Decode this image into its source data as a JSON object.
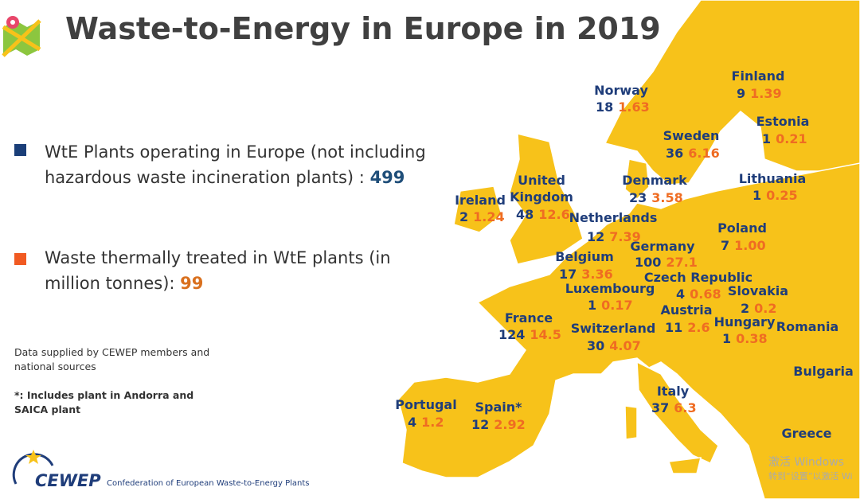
{
  "header": {
    "title": "Waste-to-Energy in Europe in 2019"
  },
  "legend": [
    {
      "text": "WtE Plants operating in Europe (not including hazardous waste incineration plants) :",
      "value": 499
    },
    {
      "text": "Waste thermally treated in WtE plants (in million tonnes):",
      "value": 99
    }
  ],
  "notes": [
    "Data supplied by CEWEP members and national sources",
    "*: Includes plant in Andorra and SAICA plant"
  ],
  "logo": {
    "name": "CEWEP",
    "subtitle": "Confederation of European Waste-to-Energy Plants"
  },
  "countries": [
    {
      "name": "Norway",
      "plants": "18",
      "tonnes": "1.63"
    },
    {
      "name": "Finland",
      "plants": "9",
      "tonnes": "1.39"
    },
    {
      "name": "Sweden",
      "plants": "36",
      "tonnes": "6.16"
    },
    {
      "name": "Estonia",
      "plants": "1",
      "tonnes": "0.21"
    },
    {
      "name": "Denmark",
      "plants": "23",
      "tonnes": "3.58"
    },
    {
      "name": "Lithuania",
      "plants": "1",
      "tonnes": "0.25"
    },
    {
      "name": "United Kingdom",
      "plants": "48",
      "tonnes": "12.6"
    },
    {
      "name": "Ireland",
      "plants": "2",
      "tonnes": "1.24"
    },
    {
      "name": "Netherlands",
      "plants": "12",
      "tonnes": "7.39"
    },
    {
      "name": "Poland",
      "plants": "7",
      "tonnes": "1.00"
    },
    {
      "name": "Germany",
      "plants": "100",
      "tonnes": "27.1"
    },
    {
      "name": "Belgium",
      "plants": "17",
      "tonnes": "3.36"
    },
    {
      "name": "Czech Republic",
      "plants": "4",
      "tonnes": "0.68"
    },
    {
      "name": "Luxembourg",
      "plants": "1",
      "tonnes": "0.17"
    },
    {
      "name": "Slovakia",
      "plants": "2",
      "tonnes": "0.2"
    },
    {
      "name": "Austria",
      "plants": "11",
      "tonnes": "2.6"
    },
    {
      "name": "France",
      "plants": "124",
      "tonnes": "14.5"
    },
    {
      "name": "Switzerland",
      "plants": "30",
      "tonnes": "4.07"
    },
    {
      "name": "Hungary",
      "plants": "1",
      "tonnes": "0.38"
    },
    {
      "name": "Romania"
    },
    {
      "name": "Bulgaria"
    },
    {
      "name": "Italy",
      "plants": "37",
      "tonnes": "6.3"
    },
    {
      "name": "Portugal",
      "plants": "4",
      "tonnes": "1.2"
    },
    {
      "name": "Spain*",
      "plants": "12",
      "tonnes": "2.92"
    },
    {
      "name": "Greece"
    }
  ],
  "watermark": [
    "激活 Windows",
    "转到“设置”以激活 Wi"
  ]
}
